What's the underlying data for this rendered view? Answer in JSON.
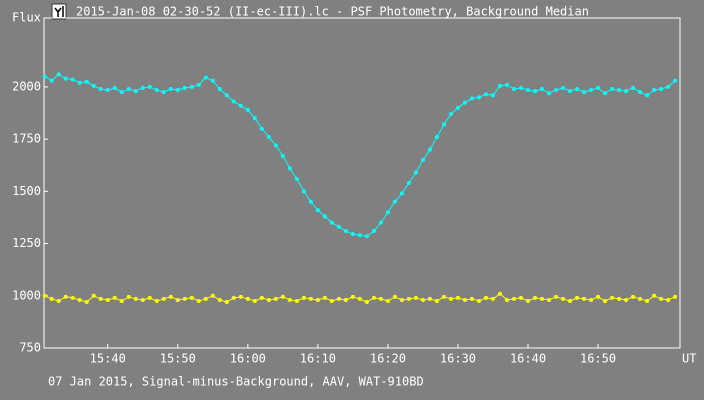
{
  "chart_data": {
    "type": "scatter",
    "title": "2015-Jan-08 02-30-52 (II-ec-III).lc - PSF Photometry, Background Median",
    "subtitle": "07 Jan 2015, Signal-minus-Background, AAV, WAT-910BD",
    "y_label": "Flux",
    "x_label": "UT",
    "x": [
      931,
      932,
      933,
      934,
      935,
      936,
      937,
      938,
      939,
      940,
      941,
      942,
      943,
      944,
      945,
      946,
      947,
      948,
      949,
      950,
      951,
      952,
      953,
      954,
      955,
      956,
      957,
      958,
      959,
      960,
      961,
      962,
      963,
      964,
      965,
      966,
      967,
      968,
      969,
      970,
      971,
      972,
      973,
      974,
      975,
      976,
      977,
      978,
      979,
      980,
      981,
      982,
      983,
      984,
      985,
      986,
      987,
      988,
      989,
      990,
      991,
      992,
      993,
      994,
      995,
      996,
      997,
      998,
      999,
      1000,
      1001,
      1002,
      1003,
      1004,
      1005,
      1006,
      1007,
      1008,
      1009,
      1010,
      1011,
      1012,
      1013,
      1014,
      1015,
      1016,
      1017,
      1018,
      1019,
      1020,
      1021
    ],
    "series": [
      {
        "color": "#00ffff",
        "values": [
          2050,
          2030,
          2060,
          2040,
          2035,
          2020,
          2025,
          2005,
          1990,
          1985,
          1995,
          1975,
          1990,
          1980,
          1995,
          2000,
          1985,
          1975,
          1990,
          1985,
          1995,
          2000,
          2010,
          2045,
          2030,
          1990,
          1960,
          1930,
          1910,
          1890,
          1850,
          1800,
          1760,
          1720,
          1670,
          1610,
          1560,
          1500,
          1450,
          1410,
          1380,
          1350,
          1330,
          1310,
          1295,
          1290,
          1285,
          1310,
          1350,
          1400,
          1450,
          1490,
          1540,
          1590,
          1650,
          1700,
          1760,
          1820,
          1870,
          1900,
          1925,
          1945,
          1950,
          1965,
          1960,
          2005,
          2010,
          1990,
          1995,
          1985,
          1980,
          1990,
          1970,
          1985,
          1995,
          1980,
          1990,
          1975,
          1985,
          1995,
          1970,
          1990,
          1985,
          1980,
          1995,
          1975,
          1960,
          1985,
          1990,
          2000,
          2030
        ]
      },
      {
        "color": "#ffff00",
        "values": [
          1000,
          985,
          975,
          995,
          990,
          980,
          970,
          1000,
          985,
          980,
          990,
          975,
          995,
          985,
          980,
          990,
          975,
          985,
          995,
          980,
          985,
          990,
          975,
          985,
          1000,
          980,
          970,
          990,
          995,
          985,
          975,
          990,
          980,
          985,
          995,
          980,
          975,
          990,
          985,
          980,
          990,
          975,
          985,
          980,
          995,
          985,
          970,
          990,
          985,
          975,
          995,
          980,
          985,
          990,
          980,
          985,
          975,
          995,
          985,
          990,
          980,
          985,
          975,
          990,
          985,
          1010,
          980,
          985,
          990,
          975,
          990,
          985,
          980,
          995,
          985,
          975,
          990,
          985,
          980,
          995,
          975,
          990,
          985,
          980,
          995,
          985,
          975,
          1000,
          985,
          980,
          995
        ]
      }
    ],
    "xlim": [
      930.9,
      1021.7
    ],
    "xticks": [
      {
        "value": 940,
        "label": "15:40"
      },
      {
        "value": 950,
        "label": "15:50"
      },
      {
        "value": 960,
        "label": "16:00"
      },
      {
        "value": 970,
        "label": "16:10"
      },
      {
        "value": 980,
        "label": "16:20"
      },
      {
        "value": 990,
        "label": "16:30"
      },
      {
        "value": 1000,
        "label": "16:40"
      },
      {
        "value": 1010,
        "label": "16:50"
      }
    ],
    "ylim": [
      750,
      2330
    ],
    "yticks": [
      750,
      1000,
      1250,
      1500,
      1750,
      2000
    ],
    "grid": false
  }
}
